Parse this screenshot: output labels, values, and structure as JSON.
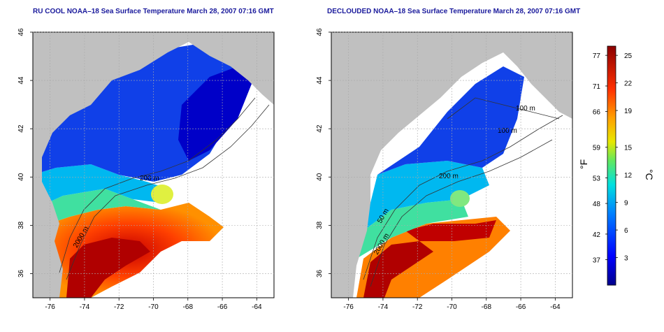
{
  "panels": [
    {
      "title": "RU COOL NOAA–18 Sea Surface Temperature March 28, 2007 07:16 GMT",
      "contour_labels": [
        "200 m",
        "2000 m"
      ]
    },
    {
      "title": "DECLOUDED NOAA–18 Sea Surface Temperature March 28, 2007 07:16 GMT",
      "contour_labels": [
        "100 m",
        "100 m",
        "200 m",
        "50 m",
        "2000 m"
      ]
    }
  ],
  "axes": {
    "x_ticks": [
      "-76",
      "-74",
      "-72",
      "-70",
      "-68",
      "-66",
      "-64"
    ],
    "y_ticks": [
      "46",
      "44",
      "42",
      "40",
      "38",
      "36"
    ],
    "lon_range": [
      -77,
      -63
    ],
    "lat_range": [
      35,
      46
    ]
  },
  "colorbar": {
    "fahrenheit_ticks": [
      "77",
      "71",
      "66",
      "59",
      "53",
      "48",
      "42",
      "37"
    ],
    "celsius_ticks": [
      "25",
      "22",
      "19",
      "15",
      "12",
      "9",
      "6",
      "3"
    ],
    "fahrenheit_unit": "°F",
    "celsius_unit": "°C",
    "range_c": [
      0,
      26
    ]
  },
  "colors": {
    "title": "#1a1a9c",
    "land": "#c0c0c0",
    "cloud": "#ffffff"
  }
}
